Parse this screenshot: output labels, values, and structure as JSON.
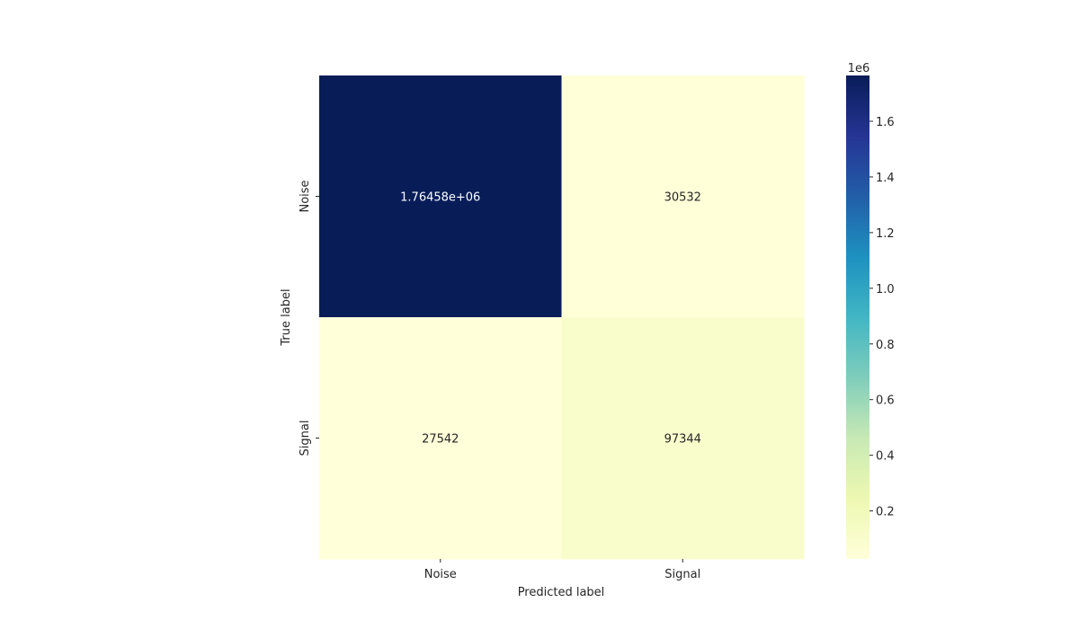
{
  "chart_data": {
    "type": "heatmap",
    "xlabel": "Predicted label",
    "ylabel": "True label",
    "x_categories": [
      "Noise",
      "Signal"
    ],
    "y_categories": [
      "Noise",
      "Signal"
    ],
    "values": [
      [
        1764580,
        30532
      ],
      [
        27542,
        97344
      ]
    ],
    "cell_labels": [
      [
        "1.76458e+06",
        "30532"
      ],
      [
        "27542",
        "97344"
      ]
    ],
    "colormap": "YlGnBu",
    "colorbar": {
      "offset_label": "1e6",
      "range": [
        27542,
        1764580
      ],
      "ticks": [
        0.2,
        0.4,
        0.6,
        0.8,
        1.0,
        1.2,
        1.4,
        1.6
      ],
      "tick_labels": [
        "0.2",
        "0.4",
        "0.6",
        "0.8",
        "1.0",
        "1.2",
        "1.4",
        "1.6"
      ],
      "scale": 1000000
    }
  }
}
